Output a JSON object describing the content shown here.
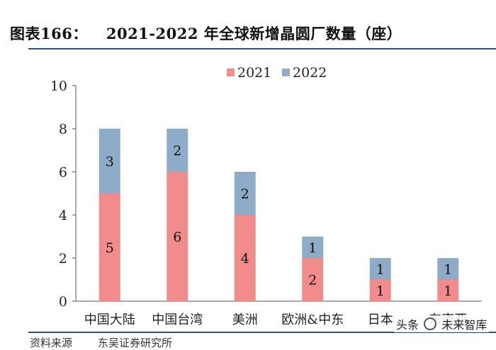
{
  "header": {
    "figure_no": "图表166：",
    "title": "2021-2022 年全球新增晶圆厂数量（座）"
  },
  "chart_data": {
    "type": "bar",
    "stacked": true,
    "categories": [
      "中国大陆",
      "中国台湾",
      "美洲",
      "欧洲&中东",
      "日本",
      "东南亚"
    ],
    "series": [
      {
        "name": "2021",
        "values": [
          5,
          6,
          4,
          2,
          1,
          1
        ],
        "color": "#f28b8b"
      },
      {
        "name": "2022",
        "values": [
          3,
          2,
          2,
          1,
          1,
          1
        ],
        "color": "#8eabc7"
      }
    ],
    "ylim": [
      0,
      10
    ],
    "yticks": [
      0,
      2,
      4,
      6,
      8,
      10
    ],
    "legend": "top-center",
    "grid": false
  },
  "footer": {
    "source": "资料来源",
    "note": "东吴证券研究所"
  },
  "watermark": {
    "text_before": "头条",
    "text_after": "未来智库"
  }
}
